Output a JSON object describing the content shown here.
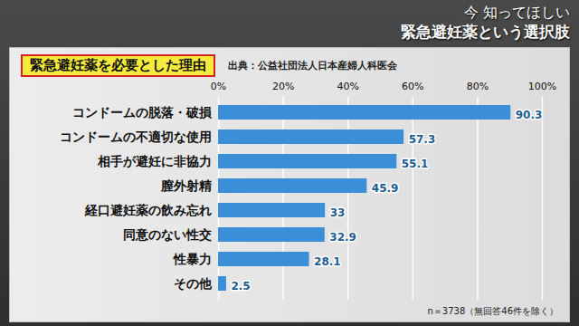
{
  "chart_data": {
    "type": "bar",
    "orientation": "horizontal",
    "caption": [
      "今 知ってほしい",
      "緊急避妊薬という選択肢"
    ],
    "title": "緊急避妊薬を必要とした理由",
    "source": "出典：公益社団法人日本産婦人科医会",
    "note": "n＝3738（無回答46件を除く）",
    "categories": [
      "コンドームの脱落・破損",
      "コンドームの不適切な使用",
      "相手が避妊に非協力",
      "膣外射精",
      "経口避妊薬の飲み忘れ",
      "同意のない性交",
      "性暴力",
      "その他"
    ],
    "values": [
      90.3,
      57.3,
      55.1,
      45.9,
      33,
      32.9,
      28.1,
      2.5
    ],
    "color": "#3b8fd9",
    "xlim": [
      0,
      100
    ],
    "xticks": [
      {
        "value": 0,
        "label": "0%"
      },
      {
        "value": 20,
        "label": "20%"
      },
      {
        "value": 40,
        "label": "40%"
      },
      {
        "value": 60,
        "label": "60%"
      },
      {
        "value": 80,
        "label": "80%"
      },
      {
        "value": 100,
        "label": "100%"
      }
    ],
    "grid": true,
    "data_labels": true
  }
}
